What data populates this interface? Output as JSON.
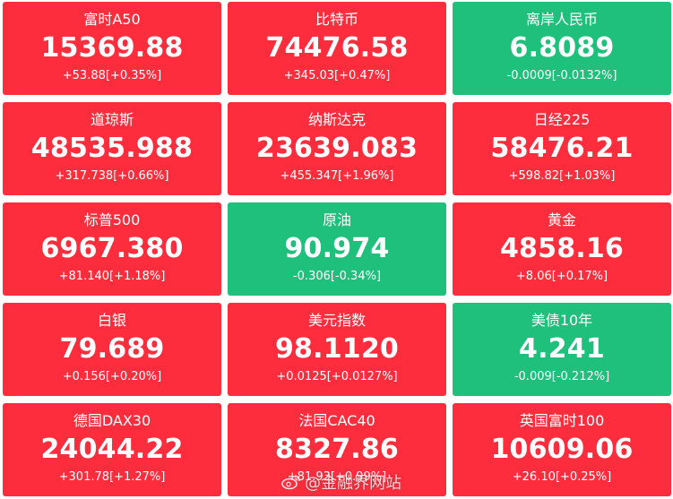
{
  "colors": {
    "up": "#fd2d3e",
    "down": "#1fbf7c",
    "text": "#ffffff"
  },
  "tiles": [
    {
      "name": "富时A50",
      "price": "15369.88",
      "change": "+53.88[+0.35%]",
      "trend": "up"
    },
    {
      "name": "比特币",
      "price": "74476.58",
      "change": "+345.03[+0.47%]",
      "trend": "up"
    },
    {
      "name": "离岸人民币",
      "price": "6.8089",
      "change": "-0.0009[-0.0132%]",
      "trend": "down"
    },
    {
      "name": "道琼斯",
      "price": "48535.988",
      "change": "+317.738[+0.66%]",
      "trend": "up"
    },
    {
      "name": "纳斯达克",
      "price": "23639.083",
      "change": "+455.347[+1.96%]",
      "trend": "up"
    },
    {
      "name": "日经225",
      "price": "58476.21",
      "change": "+598.82[+1.03%]",
      "trend": "up"
    },
    {
      "name": "标普500",
      "price": "6967.380",
      "change": "+81.140[+1.18%]",
      "trend": "up"
    },
    {
      "name": "原油",
      "price": "90.974",
      "change": "-0.306[-0.34%]",
      "trend": "down"
    },
    {
      "name": "黄金",
      "price": "4858.16",
      "change": "+8.06[+0.17%]",
      "trend": "up"
    },
    {
      "name": "白银",
      "price": "79.689",
      "change": "+0.156[+0.20%]",
      "trend": "up"
    },
    {
      "name": "美元指数",
      "price": "98.1120",
      "change": "+0.0125[+0.0127%]",
      "trend": "up"
    },
    {
      "name": "美债10年",
      "price": "4.241",
      "change": "-0.009[-0.212%]",
      "trend": "down"
    },
    {
      "name": "德国DAX30",
      "price": "24044.22",
      "change": "+301.78[+1.27%]",
      "trend": "up"
    },
    {
      "name": "法国CAC40",
      "price": "8327.86",
      "change": "+81.93[+0.99%]",
      "trend": "up"
    },
    {
      "name": "英国富时100",
      "price": "10609.06",
      "change": "+26.10[+0.25%]",
      "trend": "up"
    }
  ],
  "watermark": {
    "icon": "weibo-icon",
    "text": "@金融界网站"
  }
}
